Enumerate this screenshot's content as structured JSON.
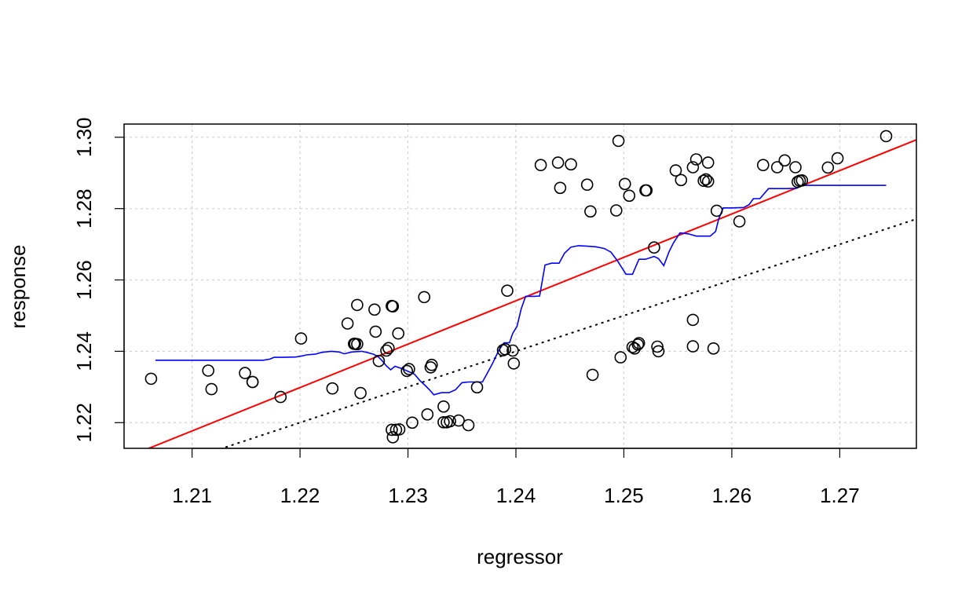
{
  "chart_data": {
    "type": "scatter",
    "title": "",
    "xlabel": "regressor",
    "ylabel": "response",
    "xlim": [
      1.2037,
      1.2771
    ],
    "ylim": [
      1.2128,
      1.3037
    ],
    "x_ticks": [
      1.21,
      1.22,
      1.23,
      1.24,
      1.25,
      1.26,
      1.27
    ],
    "y_ticks": [
      1.22,
      1.24,
      1.26,
      1.28,
      1.3
    ],
    "x_tick_labels": [
      "1.21",
      "1.22",
      "1.23",
      "1.24",
      "1.25",
      "1.26",
      "1.27"
    ],
    "y_tick_labels": [
      "1.22",
      "1.24",
      "1.26",
      "1.28",
      "1.30"
    ],
    "grid": true,
    "points": [
      [
        1.2062,
        1.2323
      ],
      [
        1.2115,
        1.2346
      ],
      [
        1.2118,
        1.2294
      ],
      [
        1.2149,
        1.2339
      ],
      [
        1.2156,
        1.2314
      ],
      [
        1.2156,
        1.2314
      ],
      [
        1.2182,
        1.2272
      ],
      [
        1.2201,
        1.2436
      ],
      [
        1.223,
        1.2296
      ],
      [
        1.2244,
        1.2478
      ],
      [
        1.225,
        1.2421
      ],
      [
        1.2251,
        1.2421
      ],
      [
        1.2253,
        1.242
      ],
      [
        1.2253,
        1.253
      ],
      [
        1.2256,
        1.2283
      ],
      [
        1.2269,
        1.2517
      ],
      [
        1.227,
        1.2455
      ],
      [
        1.2273,
        1.2373
      ],
      [
        1.228,
        1.2402
      ],
      [
        1.2282,
        1.2409
      ],
      [
        1.2285,
        1.2527
      ],
      [
        1.2286,
        1.2526
      ],
      [
        1.2285,
        1.218
      ],
      [
        1.2286,
        1.2159
      ],
      [
        1.2289,
        1.218
      ],
      [
        1.2291,
        1.245
      ],
      [
        1.2292,
        1.2181
      ],
      [
        1.2299,
        1.2345
      ],
      [
        1.2301,
        1.235
      ],
      [
        1.2304,
        1.22
      ],
      [
        1.2315,
        1.2552
      ],
      [
        1.2318,
        1.2223
      ],
      [
        1.2321,
        1.2355
      ],
      [
        1.2322,
        1.2362
      ],
      [
        1.2333,
        1.2245
      ],
      [
        1.2333,
        1.2201
      ],
      [
        1.2336,
        1.2201
      ],
      [
        1.2339,
        1.2204
      ],
      [
        1.2347,
        1.2206
      ],
      [
        1.2356,
        1.2193
      ],
      [
        1.2364,
        1.2299
      ],
      [
        1.2388,
        1.2403
      ],
      [
        1.239,
        1.2406
      ],
      [
        1.2392,
        1.257
      ],
      [
        1.2397,
        1.2402
      ],
      [
        1.2398,
        1.2366
      ],
      [
        1.2423,
        1.2922
      ],
      [
        1.2439,
        1.2929
      ],
      [
        1.2441,
        1.2858
      ],
      [
        1.2451,
        1.2924
      ],
      [
        1.2466,
        1.2867
      ],
      [
        1.2469,
        1.2792
      ],
      [
        1.2471,
        1.2334
      ],
      [
        1.2493,
        1.2795
      ],
      [
        1.2495,
        1.299
      ],
      [
        1.2497,
        1.2383
      ],
      [
        1.2501,
        1.2869
      ],
      [
        1.2505,
        1.2836
      ],
      [
        1.2508,
        1.2412
      ],
      [
        1.251,
        1.2408
      ],
      [
        1.2513,
        1.2419
      ],
      [
        1.2514,
        1.2423
      ],
      [
        1.252,
        1.2851
      ],
      [
        1.2521,
        1.2851
      ],
      [
        1.2528,
        1.2691
      ],
      [
        1.2531,
        1.2413
      ],
      [
        1.2532,
        1.24
      ],
      [
        1.2548,
        1.2907
      ],
      [
        1.2553,
        1.288
      ],
      [
        1.2564,
        1.2488
      ],
      [
        1.2564,
        1.2414
      ],
      [
        1.2564,
        1.2916
      ],
      [
        1.2567,
        1.2938
      ],
      [
        1.2574,
        1.2878
      ],
      [
        1.2576,
        1.2882
      ],
      [
        1.2578,
        1.2876
      ],
      [
        1.2578,
        1.2929
      ],
      [
        1.2583,
        1.2408
      ],
      [
        1.2586,
        1.2794
      ],
      [
        1.2607,
        1.2764
      ],
      [
        1.2629,
        1.2922
      ],
      [
        1.2642,
        1.2916
      ],
      [
        1.2649,
        1.2935
      ],
      [
        1.2659,
        1.2916
      ],
      [
        1.2661,
        1.2875
      ],
      [
        1.2663,
        1.2878
      ],
      [
        1.2665,
        1.2879
      ],
      [
        1.2689,
        1.2915
      ],
      [
        1.2698,
        1.2941
      ],
      [
        1.2743,
        1.3003
      ]
    ],
    "series": [
      {
        "kind": "line",
        "color": "#ff0000",
        "points": [
          [
            1.2037,
            1.21
          ],
          [
            1.2771,
            1.2993
          ]
        ]
      },
      {
        "kind": "line",
        "color": "#000000",
        "dash": "dotted",
        "points": [
          [
            1.2037,
            1.2037
          ],
          [
            1.2771,
            1.2771
          ]
        ]
      },
      {
        "kind": "line",
        "color": "#0000ff",
        "points": [
          [
            1.2066,
            1.2375
          ],
          [
            1.209,
            1.2375
          ],
          [
            1.211,
            1.2375
          ],
          [
            1.213,
            1.2375
          ],
          [
            1.215,
            1.2375
          ],
          [
            1.2166,
            1.2375
          ],
          [
            1.2172,
            1.2378
          ],
          [
            1.2176,
            1.2383
          ],
          [
            1.2184,
            1.2383
          ],
          [
            1.2196,
            1.2384
          ],
          [
            1.2202,
            1.2387
          ],
          [
            1.2206,
            1.239
          ],
          [
            1.2214,
            1.2392
          ],
          [
            1.222,
            1.2397
          ],
          [
            1.2229,
            1.24
          ],
          [
            1.2236,
            1.2398
          ],
          [
            1.2241,
            1.2393
          ],
          [
            1.2248,
            1.2398
          ],
          [
            1.2257,
            1.24
          ],
          [
            1.2262,
            1.2397
          ],
          [
            1.2268,
            1.2392
          ],
          [
            1.2272,
            1.2386
          ],
          [
            1.2276,
            1.2374
          ],
          [
            1.228,
            1.2359
          ],
          [
            1.2284,
            1.2348
          ],
          [
            1.2288,
            1.2358
          ],
          [
            1.2293,
            1.2353
          ],
          [
            1.23,
            1.2344
          ],
          [
            1.2306,
            1.2336
          ],
          [
            1.2311,
            1.2318
          ],
          [
            1.2316,
            1.2304
          ],
          [
            1.232,
            1.2292
          ],
          [
            1.2324,
            1.2278
          ],
          [
            1.2331,
            1.2284
          ],
          [
            1.2338,
            1.2284
          ],
          [
            1.2344,
            1.2292
          ],
          [
            1.235,
            1.2312
          ],
          [
            1.2356,
            1.2314
          ],
          [
            1.2364,
            1.2314
          ],
          [
            1.2369,
            1.2314
          ],
          [
            1.2373,
            1.2336
          ],
          [
            1.2378,
            1.2364
          ],
          [
            1.2384,
            1.2402
          ],
          [
            1.2389,
            1.2424
          ],
          [
            1.2394,
            1.2424
          ],
          [
            1.2397,
            1.245
          ],
          [
            1.2401,
            1.247
          ],
          [
            1.2405,
            1.252
          ],
          [
            1.2409,
            1.2554
          ],
          [
            1.2417,
            1.2554
          ],
          [
            1.2422,
            1.2555
          ],
          [
            1.2427,
            1.2642
          ],
          [
            1.2433,
            1.2647
          ],
          [
            1.244,
            1.2647
          ],
          [
            1.2445,
            1.2675
          ],
          [
            1.2451,
            1.2692
          ],
          [
            1.2458,
            1.2696
          ],
          [
            1.2465,
            1.2695
          ],
          [
            1.2474,
            1.2693
          ],
          [
            1.2482,
            1.2688
          ],
          [
            1.2488,
            1.2678
          ],
          [
            1.2494,
            1.2654
          ],
          [
            1.2502,
            1.2616
          ],
          [
            1.2508,
            1.2616
          ],
          [
            1.2514,
            1.2658
          ],
          [
            1.252,
            1.2658
          ],
          [
            1.2528,
            1.2666
          ],
          [
            1.2532,
            1.266
          ],
          [
            1.2537,
            1.264
          ],
          [
            1.2542,
            1.268
          ],
          [
            1.2546,
            1.2704
          ],
          [
            1.2552,
            1.2732
          ],
          [
            1.256,
            1.2729
          ],
          [
            1.2567,
            1.2723
          ],
          [
            1.2573,
            1.2723
          ],
          [
            1.258,
            1.2723
          ],
          [
            1.2585,
            1.2736
          ],
          [
            1.2588,
            1.2772
          ],
          [
            1.2592,
            1.2802
          ],
          [
            1.26,
            1.2802
          ],
          [
            1.2611,
            1.2803
          ],
          [
            1.2616,
            1.2811
          ],
          [
            1.262,
            1.2828
          ],
          [
            1.2626,
            1.2828
          ],
          [
            1.2634,
            1.2856
          ],
          [
            1.264,
            1.2856
          ],
          [
            1.265,
            1.2856
          ],
          [
            1.266,
            1.2857
          ],
          [
            1.2665,
            1.2865
          ],
          [
            1.268,
            1.2865
          ],
          [
            1.27,
            1.2865
          ],
          [
            1.272,
            1.2865
          ],
          [
            1.2743,
            1.2865
          ]
        ]
      }
    ]
  }
}
